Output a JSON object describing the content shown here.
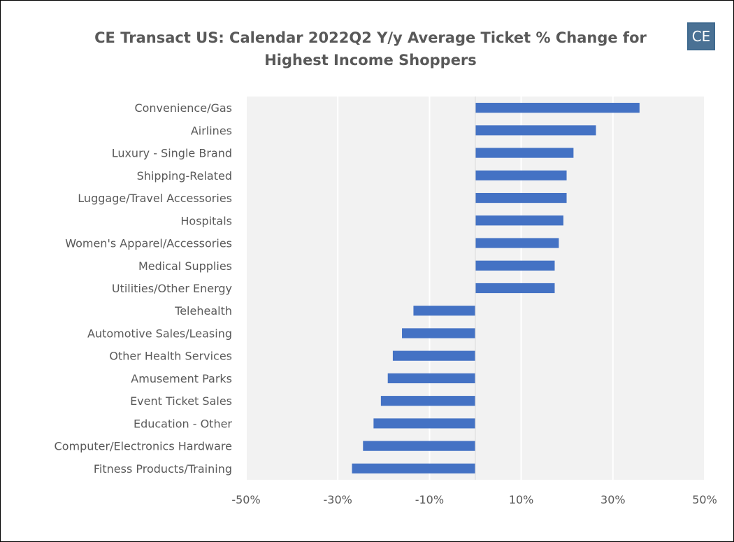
{
  "logo_text": "CE",
  "chart_data": {
    "type": "bar",
    "orientation": "horizontal",
    "title": "CE Transact US: Calendar 2022Q2 Y/y Average Ticket % Change for Highest Income Shoppers",
    "categories": [
      "Convenience/Gas",
      "Airlines",
      "Luxury - Single Brand",
      "Shipping-Related",
      "Luggage/Travel Accessories",
      "Hospitals",
      "Women's Apparel/Accessories",
      "Medical Supplies",
      "Utilities/Other Energy",
      "Telehealth",
      "Automotive Sales/Leasing",
      "Other Health Services",
      "Amusement Parks",
      "Event Ticket Sales",
      "Education - Other",
      "Computer/Electronics Hardware",
      "Fitness Products/Training"
    ],
    "values": [
      35.8,
      26.3,
      21.4,
      19.9,
      19.9,
      19.2,
      18.2,
      17.3,
      17.3,
      -13.5,
      -16.0,
      -18.0,
      -19.1,
      -20.6,
      -22.2,
      -24.5,
      -26.9
    ],
    "xlim": [
      -50,
      50
    ],
    "xticks": [
      -50,
      -30,
      -10,
      10,
      30,
      50
    ],
    "xtick_labels": [
      "-50%",
      "-30%",
      "-10%",
      "10%",
      "30%",
      "50%"
    ],
    "grid": true,
    "colors": {
      "bar": "#4472c4",
      "plot_bg": "#f2f2f2",
      "grid": "#ffffff",
      "text": "#595959"
    }
  }
}
